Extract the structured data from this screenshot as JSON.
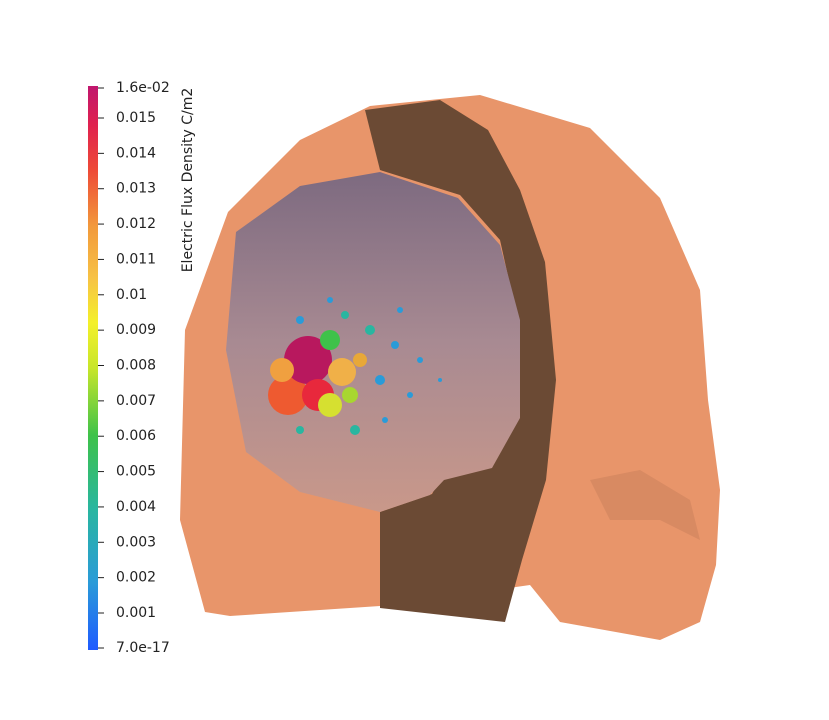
{
  "colorbar": {
    "title": "Electric Flux Density C/m2",
    "labels": [
      "1.6e-02",
      "0.015",
      "0.014",
      "0.013",
      "0.012",
      "0.011",
      "0.01",
      "0.009",
      "0.008",
      "0.007",
      "0.006",
      "0.005",
      "0.004",
      "0.003",
      "0.002",
      "0.001",
      "7.0e-17"
    ]
  }
}
